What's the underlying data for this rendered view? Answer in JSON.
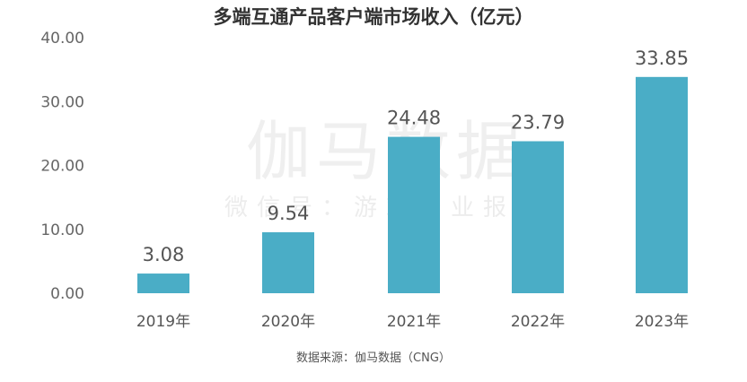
{
  "chart_data": {
    "type": "bar",
    "title": "多端互通产品客户端市场收入（亿元）",
    "categories": [
      "2019年",
      "2020年",
      "2021年",
      "2022年",
      "2023年"
    ],
    "values": [
      3.08,
      9.54,
      24.48,
      23.79,
      33.85
    ],
    "value_labels": [
      "3.08",
      "9.54",
      "24.48",
      "23.79",
      "33.85"
    ],
    "yticks": [
      "0.00",
      "10.00",
      "20.00",
      "30.00",
      "40.00"
    ],
    "ylim": [
      0,
      40
    ],
    "grid": false,
    "bar_color": "#4AADC6",
    "source": "数据来源：伽马数据（CNG）",
    "watermark": {
      "main": "伽马数据",
      "sub": "微信号：游戏产业报告"
    }
  }
}
